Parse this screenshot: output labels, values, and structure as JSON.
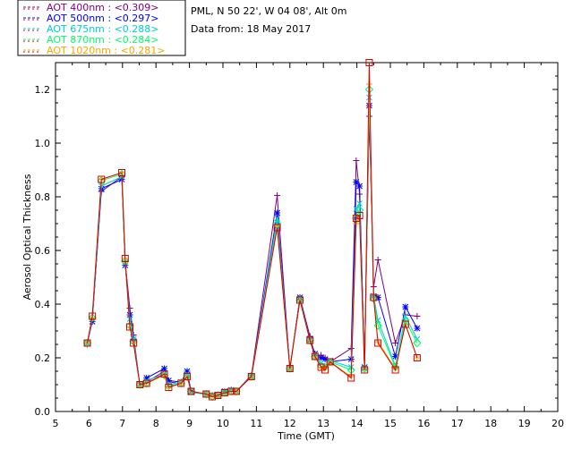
{
  "chart_data": {
    "type": "line",
    "xlabel": "Time (GMT)",
    "ylabel": "Aerosol Optical Thickness",
    "xlim": [
      5,
      20
    ],
    "ylim": [
      0,
      1.3
    ],
    "x_ticks": [
      "5",
      "6",
      "7",
      "8",
      "9",
      "10",
      "11",
      "12",
      "13",
      "14",
      "15",
      "16",
      "17",
      "18",
      "19",
      "20"
    ],
    "y_ticks": [
      "0.0",
      "0.2",
      "0.4",
      "0.6",
      "0.8",
      "1.0",
      "1.2"
    ],
    "info_lines": [
      "PML, N 50 22', W 04 08', Alt 0m",
      "Data from: 18 May 2017"
    ],
    "legend_position": "top-left",
    "series": [
      {
        "name": "AOT  400nm : <0.309>",
        "color": "#800080",
        "marker": "+",
        "x": [
          5.95,
          6.1,
          6.37,
          6.98,
          7.08,
          7.22,
          7.33,
          7.52,
          7.72,
          8.25,
          8.38,
          8.75,
          8.93,
          9.05,
          9.5,
          9.68,
          9.85,
          10.05,
          10.25,
          10.4,
          10.85,
          11.62,
          12.0,
          12.3,
          12.6,
          12.75,
          12.93,
          13.05,
          13.2,
          13.83,
          13.98,
          14.08,
          14.23,
          14.37,
          14.5,
          14.63,
          15.15,
          15.45,
          15.8
        ],
        "y": [
          0.25,
          0.345,
          0.82,
          0.875,
          0.56,
          0.385,
          0.285,
          0.1,
          0.11,
          0.15,
          0.11,
          0.105,
          0.145,
          0.075,
          0.065,
          0.06,
          0.06,
          0.07,
          0.08,
          0.075,
          0.135,
          0.805,
          0.16,
          0.425,
          0.28,
          0.205,
          0.21,
          0.2,
          0.185,
          0.235,
          0.935,
          0.81,
          0.165,
          1.1,
          0.465,
          0.565,
          0.255,
          0.36,
          0.355
        ]
      },
      {
        "name": "AOT  500nm : <0.297>",
        "color": "#0000ff",
        "marker": "*",
        "x": [
          5.95,
          6.1,
          6.37,
          6.98,
          7.08,
          7.22,
          7.33,
          7.52,
          7.72,
          8.25,
          8.38,
          8.75,
          8.93,
          9.05,
          9.5,
          9.68,
          9.85,
          10.05,
          10.25,
          10.4,
          10.85,
          11.62,
          12.0,
          12.3,
          12.6,
          12.75,
          12.93,
          13.05,
          13.2,
          13.83,
          13.98,
          14.08,
          14.23,
          14.37,
          14.5,
          14.63,
          15.15,
          15.45,
          15.8
        ],
        "y": [
          0.255,
          0.335,
          0.83,
          0.865,
          0.545,
          0.36,
          0.27,
          0.1,
          0.125,
          0.16,
          0.115,
          0.11,
          0.15,
          0.075,
          0.065,
          0.06,
          0.06,
          0.075,
          0.08,
          0.075,
          0.13,
          0.74,
          0.16,
          0.425,
          0.27,
          0.215,
          0.2,
          0.195,
          0.185,
          0.195,
          0.855,
          0.84,
          0.165,
          1.14,
          0.43,
          0.425,
          0.205,
          0.39,
          0.31
        ]
      },
      {
        "name": "AOT  675nm : <0.288>",
        "color": "#00ced1",
        "marker": "x",
        "x": [
          5.95,
          6.1,
          6.37,
          6.98,
          7.08,
          7.22,
          7.33,
          7.52,
          7.72,
          8.25,
          8.38,
          8.75,
          8.93,
          9.05,
          9.5,
          9.68,
          9.85,
          10.05,
          10.25,
          10.4,
          10.85,
          11.62,
          12.0,
          12.3,
          12.6,
          12.75,
          12.93,
          13.05,
          13.2,
          13.83,
          13.98,
          14.08,
          14.23,
          14.37,
          14.5,
          14.63,
          15.15,
          15.45,
          15.8
        ],
        "y": [
          0.255,
          0.345,
          0.84,
          0.875,
          0.555,
          0.345,
          0.27,
          0.1,
          0.115,
          0.14,
          0.1,
          0.11,
          0.14,
          0.07,
          0.065,
          0.06,
          0.06,
          0.07,
          0.08,
          0.075,
          0.13,
          0.72,
          0.16,
          0.42,
          0.265,
          0.205,
          0.18,
          0.17,
          0.19,
          0.165,
          0.755,
          0.775,
          0.16,
          1.17,
          0.43,
          0.34,
          0.17,
          0.355,
          0.27
        ]
      },
      {
        "name": "AOT  870nm : <0.284>",
        "color": "#00ff66",
        "marker": "diamond",
        "x": [
          5.95,
          6.1,
          6.37,
          6.98,
          7.08,
          7.22,
          7.33,
          7.52,
          7.72,
          8.25,
          8.38,
          8.75,
          8.93,
          9.05,
          9.5,
          9.68,
          9.85,
          10.05,
          10.25,
          10.4,
          10.85,
          11.62,
          12.0,
          12.3,
          12.6,
          12.75,
          12.93,
          13.05,
          13.2,
          13.83,
          13.98,
          14.08,
          14.23,
          14.37,
          14.5,
          14.63,
          15.15,
          15.45,
          15.8
        ],
        "y": [
          0.255,
          0.35,
          0.86,
          0.885,
          0.56,
          0.32,
          0.26,
          0.1,
          0.105,
          0.135,
          0.095,
          0.105,
          0.13,
          0.075,
          0.065,
          0.055,
          0.06,
          0.07,
          0.075,
          0.075,
          0.13,
          0.7,
          0.16,
          0.415,
          0.265,
          0.205,
          0.17,
          0.165,
          0.185,
          0.155,
          0.72,
          0.75,
          0.16,
          1.2,
          0.42,
          0.32,
          0.165,
          0.34,
          0.255
        ]
      },
      {
        "name": "AOT 1020nm : <0.281>",
        "color": "#ffa500",
        "marker": "+",
        "x": [
          5.95,
          6.1,
          6.37,
          6.98,
          7.08,
          7.22,
          7.33,
          7.52,
          7.72,
          8.25,
          8.38,
          8.75,
          8.93,
          9.05,
          9.5,
          9.68,
          9.85,
          10.05,
          10.25,
          10.4,
          10.85,
          11.62,
          12.0,
          12.3,
          12.6,
          12.75,
          12.93,
          13.05,
          13.2,
          13.83,
          13.98,
          14.08,
          14.23,
          14.37,
          14.5,
          14.63,
          15.15,
          15.45,
          15.8
        ],
        "y": [
          0.255,
          0.35,
          0.865,
          0.89,
          0.57,
          0.315,
          0.255,
          0.1,
          0.105,
          0.135,
          0.09,
          0.105,
          0.13,
          0.075,
          0.065,
          0.055,
          0.06,
          0.07,
          0.075,
          0.075,
          0.13,
          0.69,
          0.16,
          0.415,
          0.265,
          0.205,
          0.165,
          0.16,
          0.185,
          0.13,
          0.7,
          0.72,
          0.16,
          1.22,
          0.42,
          0.26,
          0.16,
          0.325,
          0.2
        ]
      },
      {
        "name": "",
        "color": "#dd0000",
        "marker": "square",
        "x": [
          5.95,
          6.1,
          6.37,
          6.98,
          7.08,
          7.22,
          7.33,
          7.52,
          7.72,
          8.25,
          8.38,
          8.75,
          8.93,
          9.05,
          9.5,
          9.68,
          9.85,
          10.05,
          10.25,
          10.4,
          10.85,
          11.62,
          12.0,
          12.3,
          12.6,
          12.75,
          12.93,
          13.05,
          13.2,
          13.83,
          13.98,
          14.08,
          14.23,
          14.37,
          14.5,
          14.63,
          15.15,
          15.45,
          15.8
        ],
        "y": [
          0.255,
          0.355,
          0.865,
          0.89,
          0.57,
          0.315,
          0.255,
          0.1,
          0.105,
          0.14,
          0.09,
          0.105,
          0.13,
          0.075,
          0.065,
          0.055,
          0.06,
          0.07,
          0.075,
          0.075,
          0.13,
          0.685,
          0.16,
          0.415,
          0.265,
          0.205,
          0.165,
          0.155,
          0.185,
          0.125,
          0.72,
          0.73,
          0.155,
          1.3,
          0.425,
          0.255,
          0.155,
          0.325,
          0.2
        ]
      }
    ]
  }
}
